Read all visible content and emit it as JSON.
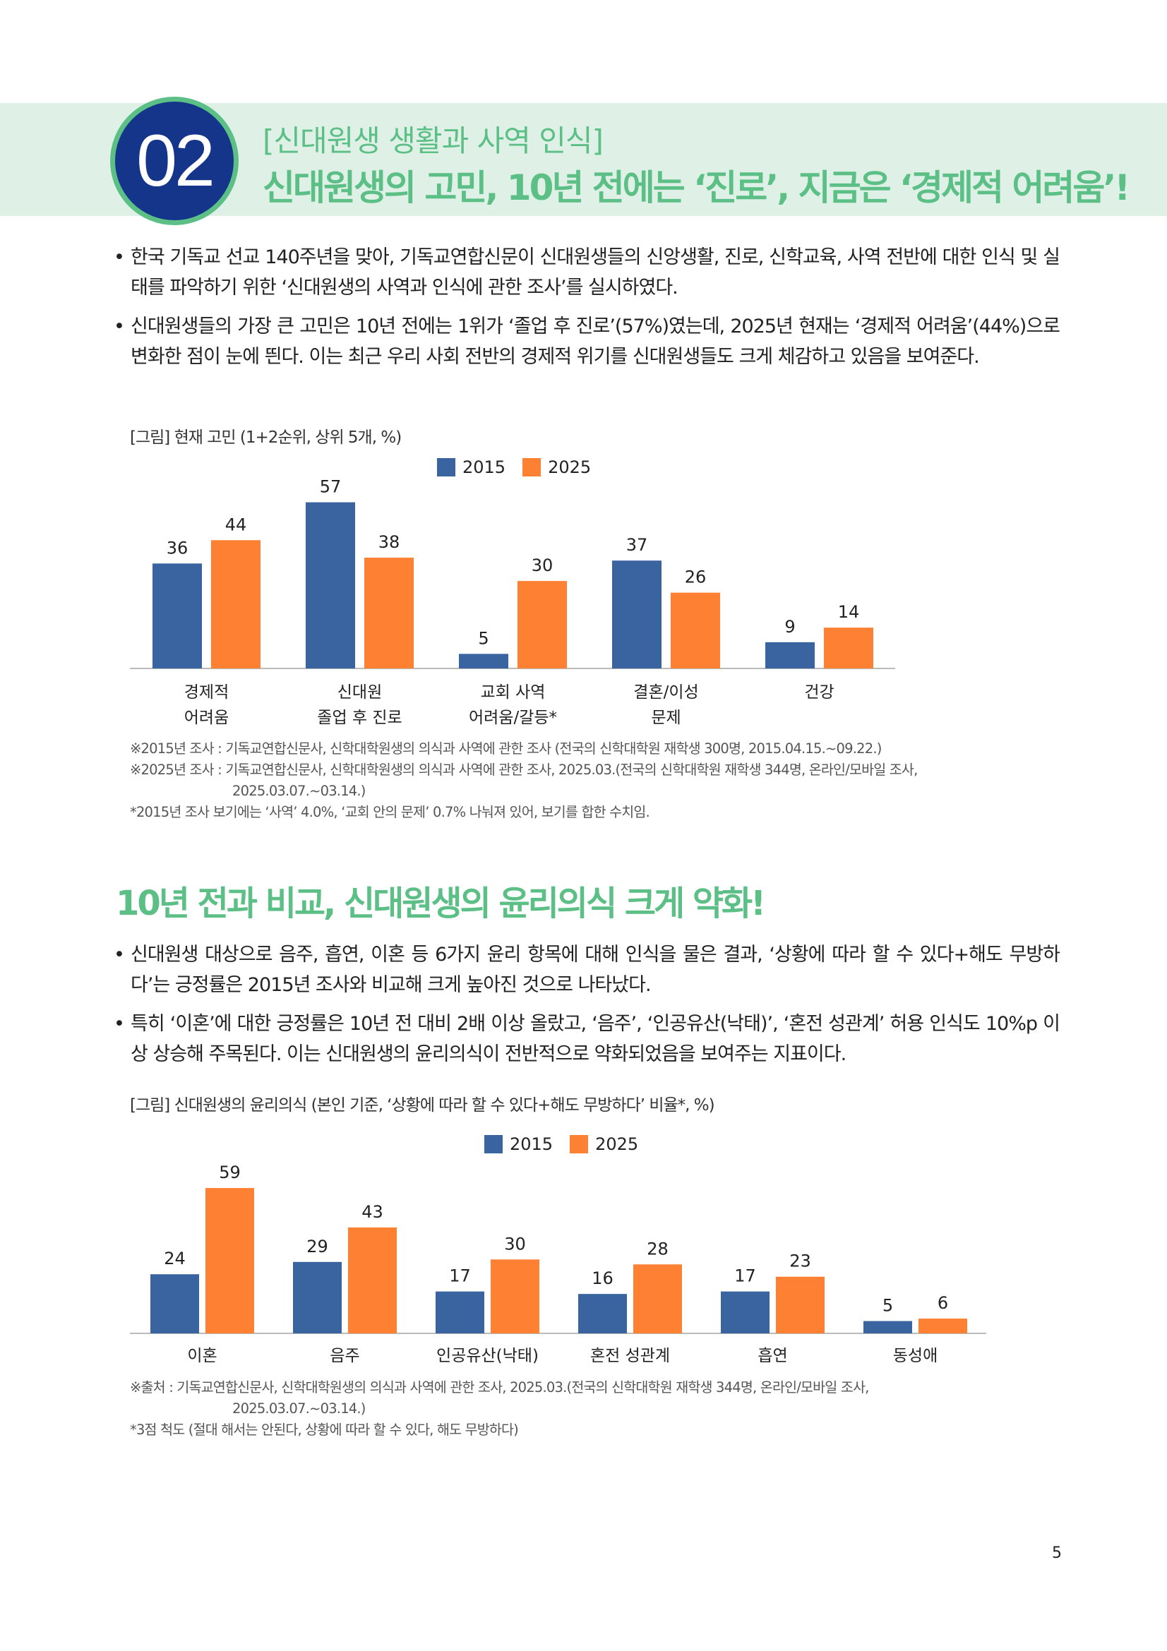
{
  "header": {
    "number": "02",
    "subtitle": "[신대원생 생활과 사역 인식]",
    "title": "신대원생의 고민, 10년 전에는 ‘진로’, 지금은 ‘경제적 어려움’!"
  },
  "section1": {
    "bullets": [
      "한국 기독교 선교 140주년을 맞아, 기독교연합신문이 신대원생들의 신앙생활, 진로, 신학교육, 사역 전반에 대한 인식 및 실태를 파악하기 위한 ‘신대원생의 사역과 인식에 관한 조사’를 실시하였다.",
      "신대원생들의 가장 큰 고민은 10년 전에는 1위가 ‘졸업 후 진로’(57%)였는데, 2025년 현재는 ‘경제적 어려움’(44%)으로 변화한 점이 눈에 띈다. 이는 최근 우리 사회 전반의 경제적 위기를 신대원생들도 크게 체감하고 있음을 보여준다."
    ],
    "caption": "[그림] 현재 고민 (1+2순위, 상위 5개, %)",
    "footnotes": [
      "※2015년 조사 : 기독교연합신문사, 신학대학원생의 의식과 사역에 관한 조사 (전국의 신학대학원 재학생 300명, 2015.04.15.~09.22.)",
      "※2025년 조사 : 기독교연합신문사, 신학대학원생의 의식과 사역에 관한 조사, 2025.03.(전국의 신학대학원 재학생 344명, 온라인/모바일 조사,",
      "2025.03.07.~03.14.)",
      "*2015년 조사 보기에는 ‘사역’ 4.0%, ‘교회 안의 문제’ 0.7% 나눠져 있어, 보기를 합한 수치임."
    ]
  },
  "section2": {
    "title": "10년 전과 비교, 신대원생의 윤리의식 크게 약화!",
    "bullets": [
      "신대원생 대상으로 음주, 흡연, 이혼 등 6가지 윤리 항목에 대해 인식을 물은 결과, ‘상황에 따라 할 수 있다+해도 무방하다’는 긍정률은 2015년 조사와 비교해 크게 높아진 것으로 나타났다.",
      "특히 ‘이혼’에 대한 긍정률은 10년 전 대비 2배 이상 올랐고, ‘음주’, ‘인공유산(낙태)’, ‘혼전 성관계’ 허용 인식도 10%p 이상 상승해 주목된다. 이는 신대원생의 윤리의식이 전반적으로 약화되었음을 보여주는 지표이다."
    ],
    "caption": "[그림] 신대원생의 윤리의식 (본인 기준, ‘상황에 따라 할 수 있다+해도 무방하다’ 비율*, %)",
    "footnotes": [
      "※출처 : 기독교연합신문사, 신학대학원생의 의식과 사역에 관한 조사, 2025.03.(전국의 신학대학원 재학생 344명, 온라인/모바일 조사,",
      "2025.03.07.~03.14.)",
      "*3점 척도 (절대 해서는 안된다, 상황에 따라 할 수 있다, 해도 무방하다)"
    ]
  },
  "colors": {
    "series_2015": "#3a64a0",
    "series_2025": "#fd8033",
    "accent_green": "#5bbf86",
    "navy": "#14358a"
  },
  "chart_data": [
    {
      "type": "bar",
      "categories": [
        [
          "경제적",
          "어려움"
        ],
        [
          "신대원",
          "졸업 후 진로"
        ],
        [
          "교회 사역",
          "어려움/갈등*"
        ],
        [
          "결혼/이성",
          "문제"
        ],
        [
          "건강"
        ]
      ],
      "series": [
        {
          "name": "2015",
          "values": [
            36,
            57,
            5,
            37,
            9
          ]
        },
        {
          "name": "2025",
          "values": [
            44,
            38,
            30,
            26,
            14
          ]
        }
      ],
      "legend": "top-center",
      "grid": false,
      "ylim": [
        0,
        60
      ]
    },
    {
      "type": "bar",
      "categories": [
        [
          "이혼"
        ],
        [
          "음주"
        ],
        [
          "인공유산(낙태)"
        ],
        [
          "혼전 성관계"
        ],
        [
          "흡연"
        ],
        [
          "동성애"
        ]
      ],
      "series": [
        {
          "name": "2015",
          "values": [
            24,
            29,
            17,
            16,
            17,
            5
          ]
        },
        {
          "name": "2025",
          "values": [
            59,
            43,
            30,
            28,
            23,
            6
          ]
        }
      ],
      "legend": "top-center",
      "grid": false,
      "ylim": [
        0,
        60
      ]
    }
  ],
  "page_number": "5"
}
